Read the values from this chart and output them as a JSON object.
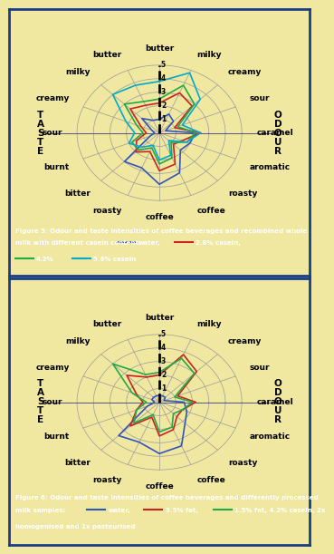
{
  "bg_color": "#f0e8a0",
  "panel_bg": "#f0e8a0",
  "border_color": "#1a3d8a",
  "caption_bg": "#1a3d8a",
  "caption_text_color": "#ffffff",
  "max_val": 5,
  "grid_levels": [
    1,
    2,
    3,
    4,
    5
  ],
  "spoke_labels": [
    "butter",
    "milky",
    "creamy",
    "sour",
    "caramel",
    "aromatic",
    "roasty",
    "coffee",
    "coffee",
    "roasty",
    "bitter",
    "burnt",
    "sour",
    "creamy",
    "milky",
    "butter"
  ],
  "fig1": {
    "caption_line1": "Figure 5: Odour and taste intensities of coffee beverages and recombined whole",
    "caption_line2": "milk with different casein content;",
    "legend": [
      {
        "label": "water",
        "color": "#3355bb"
      },
      {
        "label": "2.8% casein,",
        "color": "#cc2222"
      },
      {
        "label": "4.2%",
        "color": "#22aa44"
      },
      {
        "label": "casein,",
        "color": "#22aa44"
      },
      {
        "label": "5.6% casein",
        "color": "#00aacc"
      }
    ],
    "series": [
      {
        "label": "water",
        "color": "#3355bb",
        "values": [
          1.0,
          1.5,
          1.2,
          0.4,
          2.2,
          2.0,
          1.8,
          3.2,
          3.8,
          2.8,
          3.0,
          0.6,
          0.3,
          0.5,
          1.5,
          1.0
        ]
      },
      {
        "label": "2.8% casein",
        "color": "#cc2222",
        "values": [
          2.2,
          3.2,
          2.8,
          1.0,
          2.5,
          1.5,
          1.2,
          2.5,
          2.8,
          1.5,
          2.0,
          1.5,
          0.8,
          1.2,
          2.5,
          2.2
        ]
      },
      {
        "label": "4.2% casein",
        "color": "#22aa44",
        "values": [
          2.5,
          3.8,
          3.0,
          1.2,
          2.2,
          1.8,
          1.0,
          2.0,
          2.3,
          1.2,
          1.8,
          1.8,
          1.0,
          1.5,
          3.0,
          2.5
        ]
      },
      {
        "label": "5.6% casein",
        "color": "#00aacc",
        "values": [
          3.8,
          4.8,
          3.5,
          1.5,
          2.5,
          1.8,
          0.8,
          1.8,
          2.0,
          1.0,
          1.5,
          2.0,
          1.5,
          2.2,
          4.0,
          3.8
        ]
      }
    ]
  },
  "fig2": {
    "caption_line1": "Figure 6: Odour and taste intensities of coffee beverages and differently processed",
    "caption_line2": "milk samples;",
    "legend": [
      {
        "label": "water",
        "color": "#3355bb"
      },
      {
        "label": "3.5% fat,",
        "color": "#cc2222"
      },
      {
        "label": "1.5% fat, 4.2% casein, 2x",
        "color": "#22aa44"
      },
      {
        "label": "homogenised and 1x pasteurised",
        "color": "#22aa44"
      }
    ],
    "series": [
      {
        "label": "water",
        "color": "#3355bb",
        "values": [
          0.5,
          0.5,
          0.5,
          0.3,
          1.5,
          1.8,
          2.2,
          3.5,
          3.8,
          3.2,
          3.5,
          0.8,
          0.3,
          0.5,
          0.5,
          0.5
        ]
      },
      {
        "label": "3.5% fat",
        "color": "#cc2222",
        "values": [
          2.0,
          3.8,
          3.2,
          1.2,
          2.2,
          1.5,
          1.5,
          2.2,
          2.5,
          1.2,
          2.5,
          1.5,
          1.0,
          1.5,
          2.8,
          2.0
        ]
      },
      {
        "label": "1.5% fat",
        "color": "#22aa44",
        "values": [
          2.2,
          3.5,
          3.0,
          1.0,
          2.0,
          1.5,
          1.2,
          2.0,
          2.2,
          1.0,
          2.2,
          1.5,
          0.8,
          1.8,
          4.0,
          2.2
        ]
      }
    ]
  }
}
